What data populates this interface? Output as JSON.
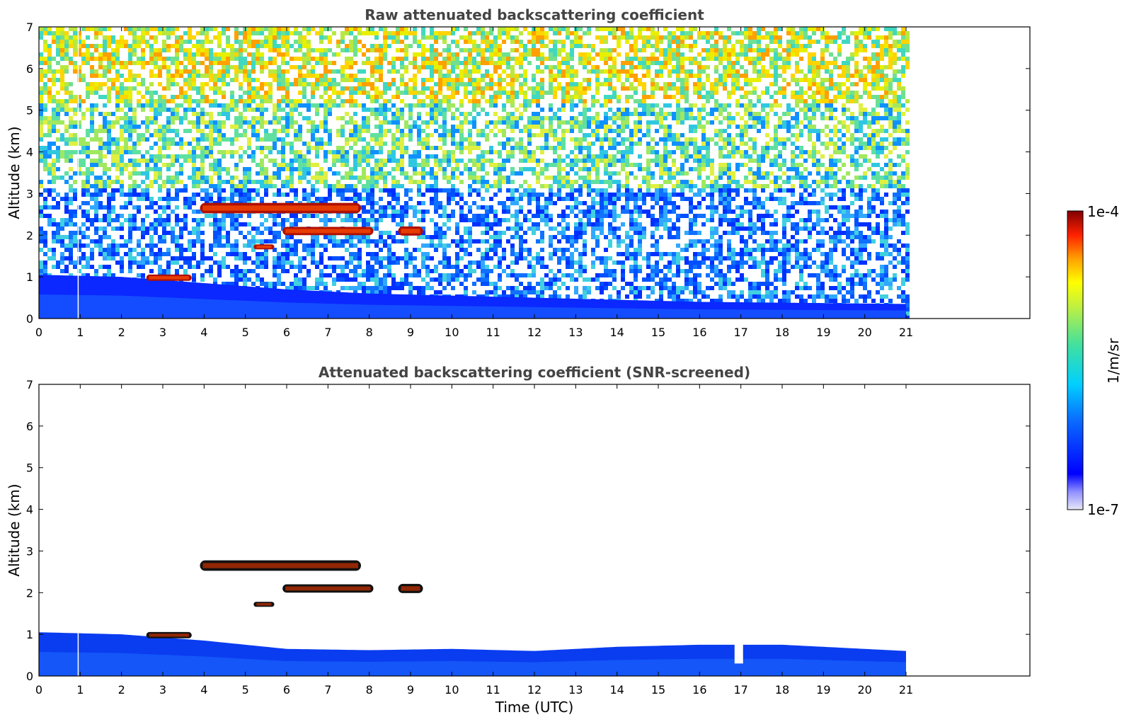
{
  "chart_data": [
    {
      "type": "heatmap",
      "title": "Raw attenuated backscattering coefficient",
      "xlabel": "",
      "ylabel": "Altitude (km)",
      "xlim": [
        0,
        24
      ],
      "ylim": [
        0,
        7
      ],
      "data_time_range": [
        0,
        21
      ],
      "x_ticks": [
        "0",
        "1",
        "2",
        "3",
        "4",
        "5",
        "6",
        "7",
        "8",
        "9",
        "10",
        "11",
        "12",
        "13",
        "14",
        "15",
        "16",
        "17",
        "18",
        "19",
        "20",
        "21"
      ],
      "y_ticks": [
        "0",
        "1",
        "2",
        "3",
        "4",
        "5",
        "6",
        "7"
      ],
      "features": [
        {
          "kind": "boundary_layer",
          "height_km_by_hour": [
            [
              0,
              1.05
            ],
            [
              2,
              1.0
            ],
            [
              4,
              0.85
            ],
            [
              6,
              0.7
            ],
            [
              8,
              0.6
            ],
            [
              10,
              0.55
            ],
            [
              12,
              0.5
            ],
            [
              14,
              0.45
            ],
            [
              16,
              0.4
            ],
            [
              18,
              0.38
            ],
            [
              21,
              0.35
            ]
          ]
        },
        {
          "kind": "cloud",
          "start": 3.9,
          "end": 7.8,
          "altitude": 2.65,
          "thickness": 0.25
        },
        {
          "kind": "cloud",
          "start": 5.9,
          "end": 8.1,
          "altitude": 2.1,
          "thickness": 0.2
        },
        {
          "kind": "cloud",
          "start": 8.7,
          "end": 9.3,
          "altitude": 2.1,
          "thickness": 0.22
        },
        {
          "kind": "cloud",
          "start": 5.2,
          "end": 5.7,
          "altitude": 1.72,
          "thickness": 0.12
        },
        {
          "kind": "cloud",
          "start": 2.6,
          "end": 3.7,
          "altitude": 0.98,
          "thickness": 0.15
        }
      ]
    },
    {
      "type": "heatmap",
      "title": "Attenuated backscattering coefficient (SNR-screened)",
      "xlabel": "Time (UTC)",
      "ylabel": "Altitude (km)",
      "xlim": [
        0,
        24
      ],
      "ylim": [
        0,
        7
      ],
      "data_time_range": [
        0,
        21
      ],
      "x_ticks": [
        "0",
        "1",
        "2",
        "3",
        "4",
        "5",
        "6",
        "7",
        "8",
        "9",
        "10",
        "11",
        "12",
        "13",
        "14",
        "15",
        "16",
        "17",
        "18",
        "19",
        "20",
        "21"
      ],
      "y_ticks": [
        "0",
        "1",
        "2",
        "3",
        "4",
        "5",
        "6",
        "7"
      ],
      "features": [
        {
          "kind": "boundary_layer",
          "height_km_by_hour": [
            [
              0,
              1.05
            ],
            [
              2,
              1.0
            ],
            [
              4,
              0.85
            ],
            [
              6,
              0.65
            ],
            [
              8,
              0.62
            ],
            [
              10,
              0.65
            ],
            [
              12,
              0.6
            ],
            [
              14,
              0.7
            ],
            [
              16,
              0.75
            ],
            [
              17,
              0.75
            ],
            [
              18,
              0.75
            ],
            [
              21,
              0.6
            ]
          ]
        },
        {
          "kind": "cloud",
          "start": 3.9,
          "end": 7.8,
          "altitude": 2.65,
          "thickness": 0.25
        },
        {
          "kind": "cloud",
          "start": 5.9,
          "end": 8.1,
          "altitude": 2.1,
          "thickness": 0.2
        },
        {
          "kind": "cloud",
          "start": 8.7,
          "end": 9.3,
          "altitude": 2.1,
          "thickness": 0.22
        },
        {
          "kind": "cloud",
          "start": 5.2,
          "end": 5.7,
          "altitude": 1.72,
          "thickness": 0.12
        },
        {
          "kind": "cloud",
          "start": 2.6,
          "end": 3.7,
          "altitude": 0.98,
          "thickness": 0.15
        },
        {
          "kind": "gap",
          "time": 16.95,
          "altitude": 0.3
        }
      ]
    }
  ],
  "colorbar": {
    "label": "1/m/sr",
    "max_label": "1e-4",
    "min_label": "1e-7",
    "scale": "log",
    "colormap": "jet"
  }
}
